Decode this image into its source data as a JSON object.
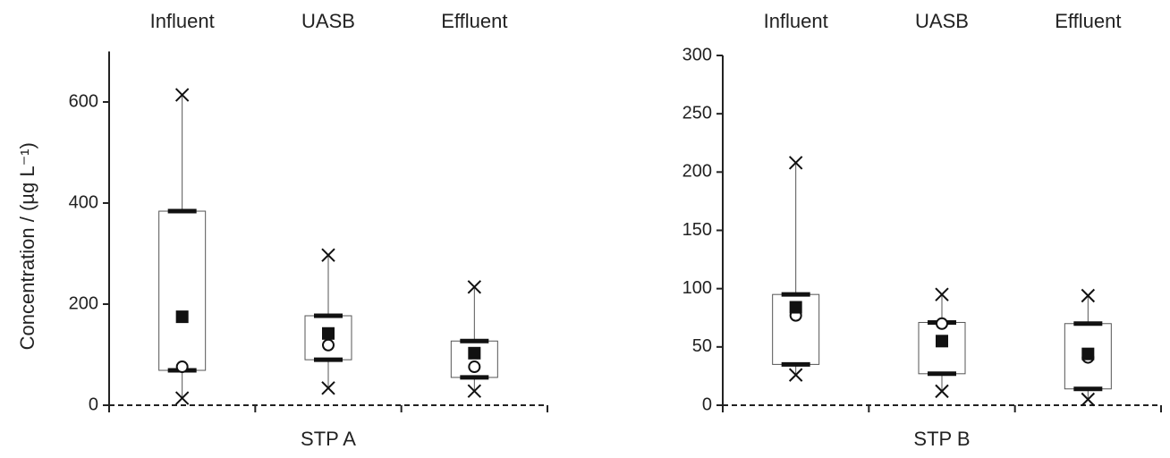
{
  "chart_data": [
    {
      "type": "box",
      "xlabel": "STP A",
      "ylabel": "Concentration / (µg L⁻¹)",
      "categories": [
        "Influent",
        "UASB",
        "Effluent"
      ],
      "min": [
        14,
        34,
        28
      ],
      "q1": [
        69,
        90,
        55
      ],
      "median": [
        76,
        119,
        76
      ],
      "q3": [
        384,
        177,
        127
      ],
      "max": [
        614,
        297,
        234
      ],
      "mean": [
        175,
        142,
        103
      ],
      "ylim": [
        0,
        700
      ],
      "yticks": [
        0,
        200,
        400,
        600
      ]
    },
    {
      "type": "box",
      "xlabel": "STP B",
      "categories": [
        "Influent",
        "UASB",
        "Effluent"
      ],
      "min": [
        26,
        12,
        5
      ],
      "q1": [
        35,
        27,
        14
      ],
      "median": [
        77,
        70,
        41
      ],
      "q3": [
        95,
        71,
        70
      ],
      "max": [
        208,
        95,
        94
      ],
      "mean": [
        84,
        55,
        44
      ],
      "ylim": [
        0,
        300
      ],
      "yticks": [
        0,
        50,
        100,
        150,
        200,
        250,
        300
      ]
    }
  ]
}
